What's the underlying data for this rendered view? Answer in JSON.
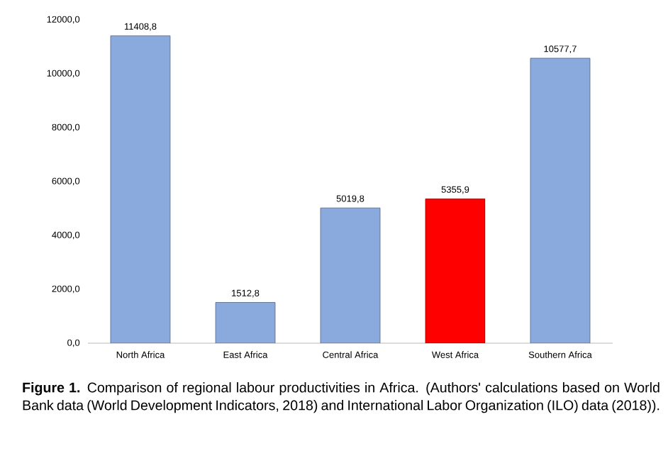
{
  "chart_data": {
    "type": "bar",
    "categories": [
      "North Africa",
      "East Africa",
      "Central Africa",
      "West Africa",
      "Southern Africa"
    ],
    "values": [
      11408.8,
      1512.8,
      5019.8,
      5355.9,
      10577.7
    ],
    "value_labels": [
      "11408,8",
      "1512,8",
      "5019,8",
      "5355,9",
      "10577,7"
    ],
    "colors": [
      "#8aa9dc",
      "#8aa9dc",
      "#8aa9dc",
      "#ff0000",
      "#8aa9dc"
    ],
    "ylim": [
      0,
      12000
    ],
    "yticks": [
      {
        "value": 0,
        "label": "0,0"
      },
      {
        "value": 2000,
        "label": "2000,0"
      },
      {
        "value": 4000,
        "label": "4000,0"
      },
      {
        "value": 6000,
        "label": "6000,0"
      },
      {
        "value": 8000,
        "label": "8000,0"
      },
      {
        "value": 10000,
        "label": "10000,0"
      },
      {
        "value": 12000,
        "label": "12000,0"
      }
    ],
    "annotations": [
      "**Figure 1.** Comparison of regional labour productivities in Africa. (Authors' calculations based on World Bank data (World Development Indicators, 2018) and International Labor Organization (ILO) data (2018))."
    ]
  }
}
